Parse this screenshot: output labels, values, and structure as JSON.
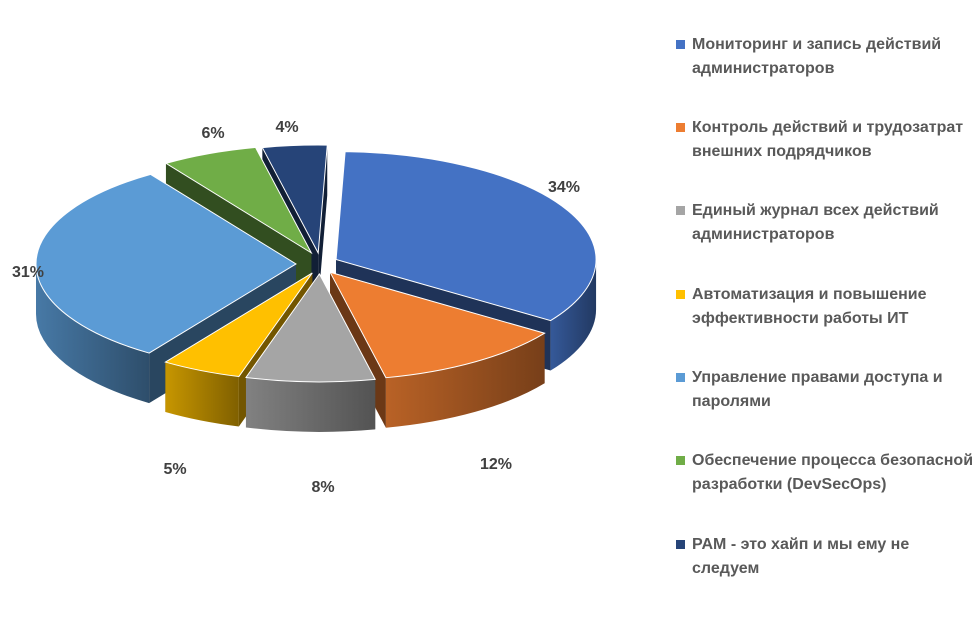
{
  "chart_data": {
    "type": "pie",
    "style": "3d-exploded",
    "legend_position": "right",
    "slices": [
      {
        "label": "Мониторинг и запись действий администраторов",
        "value": 34,
        "display": "34%",
        "color": "#4472C4"
      },
      {
        "label": "Контроль действий и трудозатрат внешних подрядчиков",
        "value": 12,
        "display": "12%",
        "color": "#ED7D31"
      },
      {
        "label": "Единый журнал всех действий администраторов",
        "value": 8,
        "display": "8%",
        "color": "#A5A5A5"
      },
      {
        "label": "Автоматизация и повышение эффективности работы ИТ",
        "value": 5,
        "display": "5%",
        "color": "#FFC000"
      },
      {
        "label": "Управление правами доступа и паролями",
        "value": 31,
        "display": "31%",
        "color": "#5B9BD5"
      },
      {
        "label": "Обеспечение процесса безопасной разработки (DevSecOps)",
        "value": 6,
        "display": "6%",
        "color": "#70AD47"
      },
      {
        "label": "PAM - это хайп и мы ему не следуем",
        "value": 4,
        "display": "4%",
        "color": "#264478"
      }
    ]
  }
}
